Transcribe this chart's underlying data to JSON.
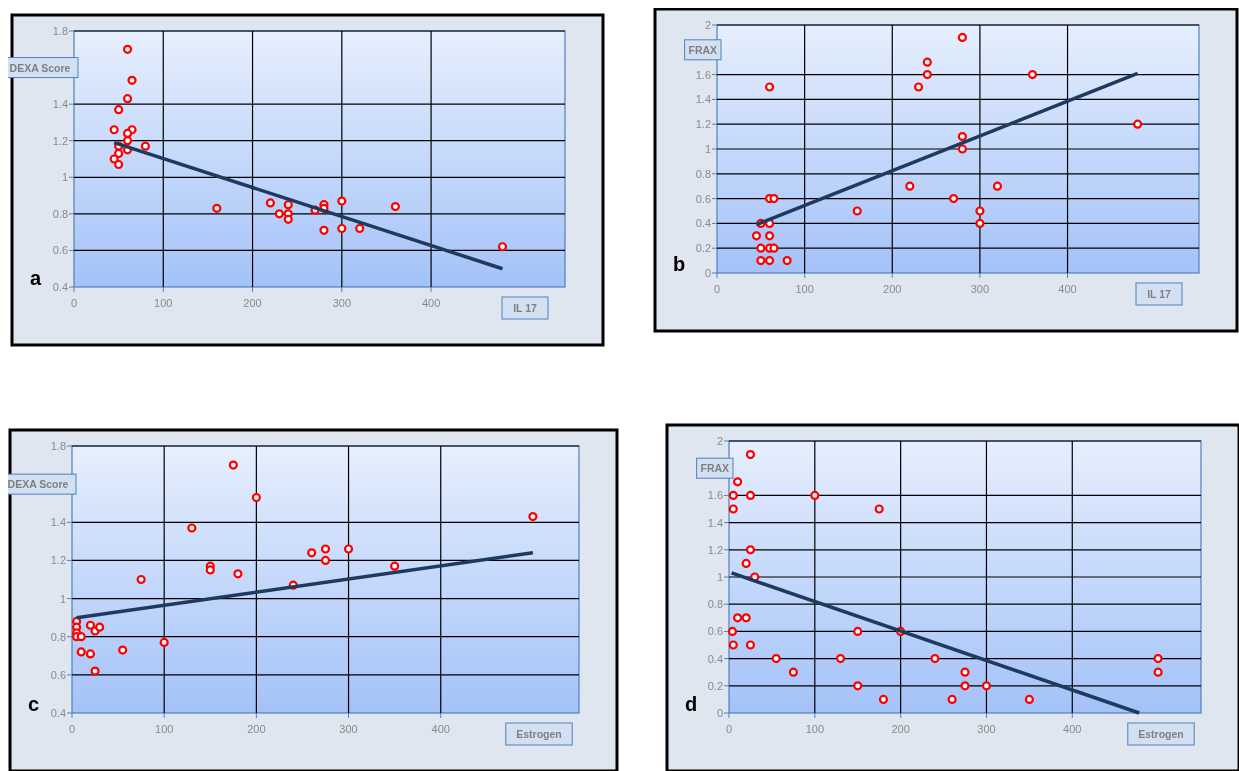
{
  "chart_data": [
    {
      "type": "scatter",
      "ylabel": "DEXA Score",
      "xlabel": "IL 17",
      "annotations": [
        "a"
      ],
      "xlim": [
        0,
        550
      ],
      "xticks": [
        0,
        100,
        200,
        300,
        400
      ],
      "ylim": [
        0.4,
        1.8
      ],
      "yticks": [
        0.4,
        0.6,
        0.8,
        1,
        1.2,
        1.4,
        1.8
      ],
      "grid": true,
      "series": [
        {
          "marker": "circle",
          "color": "#ff0000",
          "x": [
            60,
            65,
            60,
            50,
            45,
            65,
            60,
            60,
            50,
            80,
            60,
            50,
            45,
            50,
            160,
            220,
            230,
            240,
            240,
            240,
            270,
            280,
            280,
            280,
            300,
            300,
            320,
            360,
            480
          ],
          "values": [
            1.7,
            1.53,
            1.43,
            1.37,
            1.26,
            1.26,
            1.24,
            1.2,
            1.17,
            1.17,
            1.15,
            1.13,
            1.1,
            1.07,
            0.83,
            0.86,
            0.8,
            0.85,
            0.8,
            0.77,
            0.82,
            0.85,
            0.83,
            0.71,
            0.87,
            0.72,
            0.72,
            0.84,
            0.62
          ]
        },
        {
          "type": "line",
          "marker": "none",
          "color": "#1f3a5f",
          "x": [
            45,
            480
          ],
          "values": [
            1.19,
            0.5
          ]
        }
      ]
    },
    {
      "type": "scatter",
      "ylabel": "FRAX",
      "xlabel": "IL 17",
      "annotations": [
        "b"
      ],
      "xlim": [
        0,
        550
      ],
      "xticks": [
        0,
        100,
        200,
        300,
        400
      ],
      "ylim": [
        0,
        2
      ],
      "yticks": [
        0,
        0.2,
        0.4,
        0.6,
        0.8,
        1,
        1.2,
        1.4,
        1.6,
        2
      ],
      "grid": true,
      "series": [
        {
          "marker": "circle",
          "color": "#ff0000",
          "x": [
            280,
            240,
            240,
            360,
            60,
            230,
            480,
            280,
            280,
            220,
            320,
            60,
            65,
            270,
            160,
            300,
            50,
            60,
            300,
            45,
            60,
            50,
            60,
            65,
            50,
            60,
            80
          ],
          "values": [
            1.9,
            1.7,
            1.6,
            1.6,
            1.5,
            1.5,
            1.2,
            1.1,
            1.0,
            0.7,
            0.7,
            0.6,
            0.6,
            0.6,
            0.5,
            0.5,
            0.4,
            0.4,
            0.4,
            0.3,
            0.3,
            0.2,
            0.2,
            0.2,
            0.1,
            0.1,
            0.1
          ]
        },
        {
          "type": "line",
          "marker": "none",
          "color": "#1f3a5f",
          "x": [
            45,
            480
          ],
          "values": [
            0.39,
            1.61
          ]
        }
      ]
    },
    {
      "type": "scatter",
      "ylabel": "DEXA Score",
      "xlabel": "Estrogen",
      "annotations": [
        "c"
      ],
      "xlim": [
        0,
        550
      ],
      "xticks": [
        0,
        100,
        200,
        300,
        400
      ],
      "ylim": [
        0.4,
        1.8
      ],
      "yticks": [
        0.4,
        0.6,
        0.8,
        1,
        1.2,
        1.4,
        1.8
      ],
      "grid": true,
      "series": [
        {
          "marker": "circle",
          "color": "#ff0000",
          "x": [
            175,
            200,
            500,
            130,
            260,
            275,
            300,
            275,
            150,
            150,
            350,
            180,
            75,
            240,
            5,
            5,
            5,
            5,
            10,
            20,
            25,
            30,
            10,
            20,
            55,
            100,
            25
          ],
          "values": [
            1.7,
            1.53,
            1.43,
            1.37,
            1.24,
            1.26,
            1.26,
            1.2,
            1.17,
            1.15,
            1.17,
            1.13,
            1.1,
            1.07,
            0.88,
            0.85,
            0.82,
            0.8,
            0.8,
            0.86,
            0.83,
            0.85,
            0.72,
            0.71,
            0.73,
            0.77,
            0.62
          ]
        },
        {
          "type": "line",
          "marker": "none",
          "color": "#1f3a5f",
          "x": [
            5,
            500
          ],
          "values": [
            0.9,
            1.24
          ]
        }
      ]
    },
    {
      "type": "scatter",
      "ylabel": "FRAX",
      "xlabel": "Estrogen",
      "annotations": [
        "d"
      ],
      "xlim": [
        0,
        550
      ],
      "xticks": [
        0,
        100,
        200,
        300,
        400
      ],
      "ylim": [
        0,
        2
      ],
      "yticks": [
        0,
        0.2,
        0.4,
        0.6,
        0.8,
        1,
        1.2,
        1.4,
        1.6,
        2
      ],
      "grid": true,
      "series": [
        {
          "marker": "circle",
          "color": "#ff0000",
          "x": [
            25,
            10,
            5,
            25,
            100,
            5,
            175,
            25,
            20,
            30,
            10,
            20,
            4,
            150,
            200,
            5,
            25,
            55,
            130,
            240,
            500,
            75,
            275,
            500,
            150,
            275,
            300,
            180,
            260,
            350
          ],
          "values": [
            1.9,
            1.7,
            1.6,
            1.6,
            1.6,
            1.5,
            1.5,
            1.2,
            1.1,
            1.0,
            0.7,
            0.7,
            0.6,
            0.6,
            0.6,
            0.5,
            0.5,
            0.4,
            0.4,
            0.4,
            0.4,
            0.3,
            0.3,
            0.3,
            0.2,
            0.2,
            0.2,
            0.1,
            0.1,
            0.1
          ]
        },
        {
          "type": "line",
          "marker": "none",
          "color": "#1f3a5f",
          "x": [
            3,
            478
          ],
          "values": [
            1.03,
            0
          ]
        }
      ]
    }
  ]
}
